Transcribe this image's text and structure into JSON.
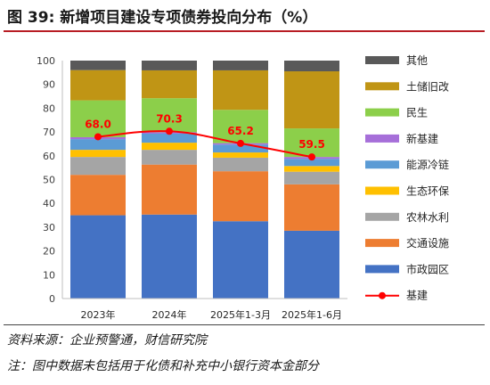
{
  "figure": {
    "title": "图 39:  新增项目建设专项债券投向分布（%）",
    "source": "资料来源：企业预警通，财信研究院",
    "note": "注：图中数据未包括用于化债和补充中小银行资本金部分"
  },
  "chart_data": {
    "type": "bar",
    "stacked": true,
    "categories": [
      "2023年",
      "2024年",
      "2025年1-3月",
      "2025年1-6月"
    ],
    "ylim": [
      0,
      100
    ],
    "yticks": [
      0,
      10,
      20,
      30,
      40,
      50,
      60,
      70,
      80,
      90,
      100
    ],
    "grid": false,
    "legend_position": "right",
    "series": [
      {
        "name": "市政园区",
        "color": "#4472c4",
        "values": [
          35,
          35.3,
          32.5,
          28.5
        ]
      },
      {
        "name": "交通设施",
        "color": "#ed7d31",
        "values": [
          17,
          21,
          21,
          19.5
        ]
      },
      {
        "name": "农林水利",
        "color": "#a5a5a5",
        "values": [
          7.5,
          6.2,
          5.7,
          5.3
        ]
      },
      {
        "name": "生态环保",
        "color": "#ffc000",
        "values": [
          3,
          3,
          2.2,
          2.4
        ]
      },
      {
        "name": "能源冷链",
        "color": "#5b9bd5",
        "values": [
          4.5,
          3.8,
          3.3,
          3
        ]
      },
      {
        "name": "新基建",
        "color": "#a66fd9",
        "values": [
          0.8,
          0.6,
          0.6,
          0.8
        ]
      },
      {
        "name": "民生",
        "color": "#8ccf4a",
        "values": [
          15.5,
          14.3,
          14,
          12
        ]
      },
      {
        "name": "土储旧改",
        "color": "#c09515",
        "values": [
          12.7,
          11.7,
          16.6,
          24
        ]
      },
      {
        "name": "其他",
        "color": "#595959",
        "values": [
          4,
          4.1,
          4.1,
          4.5
        ]
      }
    ],
    "line": {
      "name": "基建",
      "color": "#ff0000",
      "values": [
        68.0,
        70.3,
        65.2,
        59.5
      ],
      "labels": [
        "68.0",
        "70.3",
        "65.2",
        "59.5"
      ]
    }
  }
}
